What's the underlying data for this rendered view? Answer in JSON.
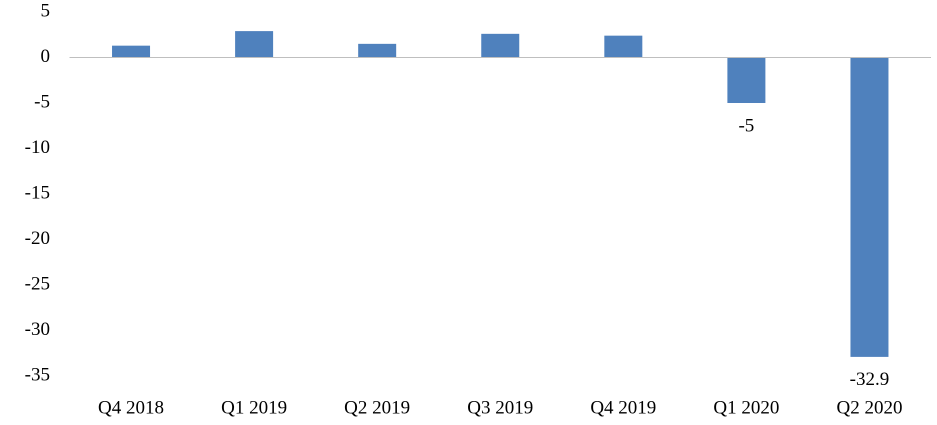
{
  "chart_data": {
    "type": "bar",
    "categories": [
      "Q4 2018",
      "Q1 2019",
      "Q2 2019",
      "Q3 2019",
      "Q4 2019",
      "Q1 2020",
      "Q2 2020"
    ],
    "values": [
      1.3,
      2.9,
      1.5,
      2.6,
      2.4,
      -5,
      -32.9
    ],
    "value_labels": [
      null,
      null,
      null,
      null,
      null,
      "-5",
      "-32.9"
    ],
    "color": "#4f81bd",
    "ylim": [
      -35,
      5
    ],
    "yticks": [
      5,
      0,
      -5,
      -10,
      -15,
      -20,
      -25,
      -30,
      -35
    ],
    "grid": false
  }
}
